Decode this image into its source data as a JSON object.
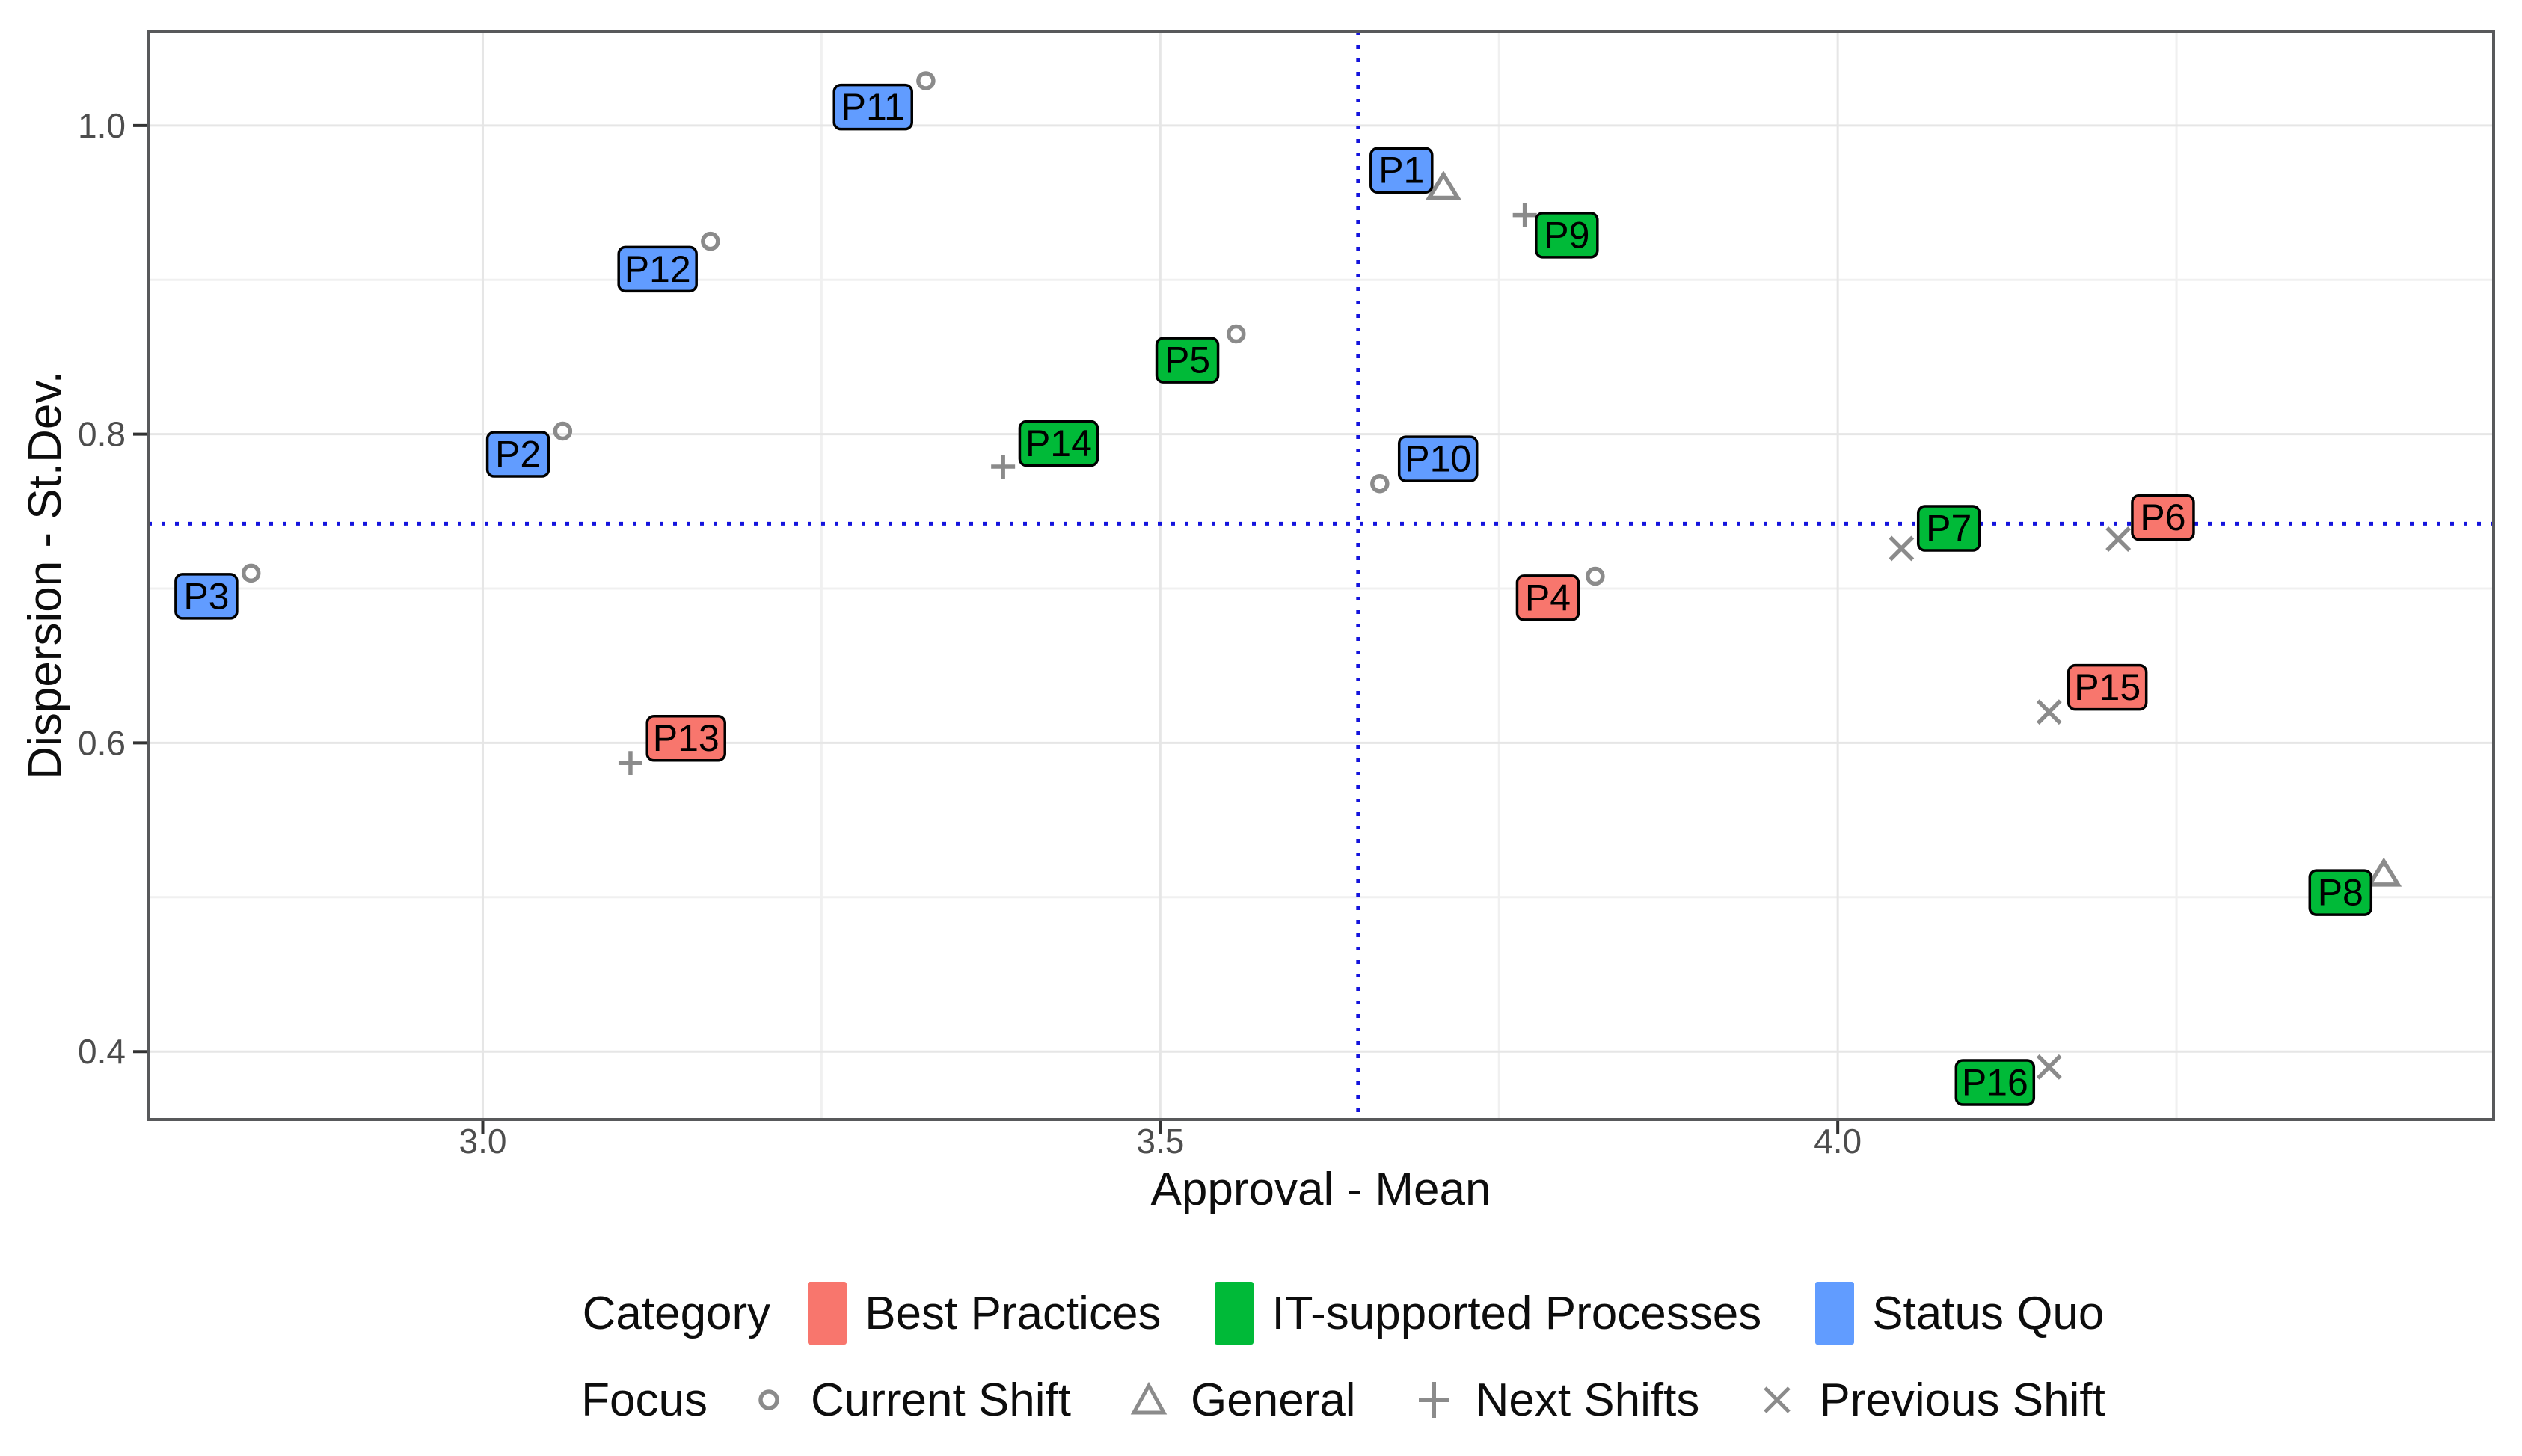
{
  "chart_data": {
    "type": "scatter",
    "title": "",
    "xlabel": "Approval - Mean",
    "ylabel": "Dispersion - St.Dev.",
    "xlim": [
      2.753,
      4.484
    ],
    "ylim": [
      0.356,
      1.061
    ],
    "x_ticks": {
      "values": [
        3.0,
        3.5,
        4.0
      ],
      "labels": [
        "3.0",
        "3.5",
        "4.0"
      ]
    },
    "y_ticks": {
      "values": [
        0.4,
        0.6,
        0.8,
        1.0
      ],
      "labels": [
        "0.4",
        "0.6",
        "0.8",
        "1.0"
      ]
    },
    "x_minor": [
      3.25,
      3.75,
      4.25
    ],
    "y_minor": [
      0.5,
      0.7,
      0.9
    ],
    "grid": "major+minor, light gray, legend bottom",
    "reference_lines": {
      "vertical_x": 3.646,
      "horizontal_y": 0.742,
      "style": "dotted",
      "color": "#1414dd"
    },
    "category_colors": {
      "Best Practices": "#F8766D",
      "IT-supported Processes": "#00BA38",
      "Status Quo": "#619CFF"
    },
    "marker_color": "#8b8b8b",
    "points": [
      {
        "id": "P1",
        "category": "Status Quo",
        "focus": "General",
        "x": 3.709,
        "y": 0.96,
        "label_x": 3.678,
        "label_y": 0.971
      },
      {
        "id": "P2",
        "category": "Status Quo",
        "focus": "Current Shift",
        "x": 3.059,
        "y": 0.802,
        "label_x": 3.026,
        "label_y": 0.787
      },
      {
        "id": "P3",
        "category": "Status Quo",
        "focus": "Current Shift",
        "x": 2.829,
        "y": 0.71,
        "label_x": 2.796,
        "label_y": 0.695
      },
      {
        "id": "P4",
        "category": "Best Practices",
        "focus": "Current Shift",
        "x": 3.821,
        "y": 0.708,
        "label_x": 3.786,
        "label_y": 0.694
      },
      {
        "id": "P5",
        "category": "IT-supported Processes",
        "focus": "Current Shift",
        "x": 3.556,
        "y": 0.865,
        "label_x": 3.52,
        "label_y": 0.848
      },
      {
        "id": "P6",
        "category": "Best Practices",
        "focus": "Previous Shift",
        "x": 4.207,
        "y": 0.732,
        "label_x": 4.24,
        "label_y": 0.746
      },
      {
        "id": "P7",
        "category": "IT-supported Processes",
        "focus": "Previous Shift",
        "x": 4.047,
        "y": 0.726,
        "label_x": 4.082,
        "label_y": 0.739
      },
      {
        "id": "P8",
        "category": "IT-supported Processes",
        "focus": "General",
        "x": 4.403,
        "y": 0.515,
        "label_x": 4.371,
        "label_y": 0.503
      },
      {
        "id": "P9",
        "category": "IT-supported Processes",
        "focus": "Next Shifts",
        "x": 3.769,
        "y": 0.942,
        "label_x": 3.8,
        "label_y": 0.929
      },
      {
        "id": "P10",
        "category": "Status Quo",
        "focus": "Current Shift",
        "x": 3.662,
        "y": 0.768,
        "label_x": 3.705,
        "label_y": 0.784
      },
      {
        "id": "P11",
        "category": "Status Quo",
        "focus": "Current Shift",
        "x": 3.327,
        "y": 1.029,
        "label_x": 3.288,
        "label_y": 1.012
      },
      {
        "id": "P12",
        "category": "Status Quo",
        "focus": "Current Shift",
        "x": 3.168,
        "y": 0.925,
        "label_x": 3.129,
        "label_y": 0.907
      },
      {
        "id": "P13",
        "category": "Best Practices",
        "focus": "Next Shifts",
        "x": 3.109,
        "y": 0.587,
        "label_x": 3.15,
        "label_y": 0.603
      },
      {
        "id": "P14",
        "category": "IT-supported Processes",
        "focus": "Next Shifts",
        "x": 3.384,
        "y": 0.779,
        "label_x": 3.425,
        "label_y": 0.794
      },
      {
        "id": "P15",
        "category": "Best Practices",
        "focus": "Previous Shift",
        "x": 4.156,
        "y": 0.62,
        "label_x": 4.199,
        "label_y": 0.636
      },
      {
        "id": "P16",
        "category": "IT-supported Processes",
        "focus": "Previous Shift",
        "x": 4.156,
        "y": 0.39,
        "label_x": 4.116,
        "label_y": 0.38
      }
    ],
    "legend": {
      "category": {
        "title": "Category",
        "items": [
          "Best Practices",
          "IT-supported Processes",
          "Status Quo"
        ]
      },
      "focus": {
        "title": "Focus",
        "items": [
          {
            "label": "Current Shift",
            "marker": "circle"
          },
          {
            "label": "General",
            "marker": "triangle"
          },
          {
            "label": "Next Shifts",
            "marker": "plus"
          },
          {
            "label": "Previous Shift",
            "marker": "x"
          }
        ]
      }
    }
  }
}
